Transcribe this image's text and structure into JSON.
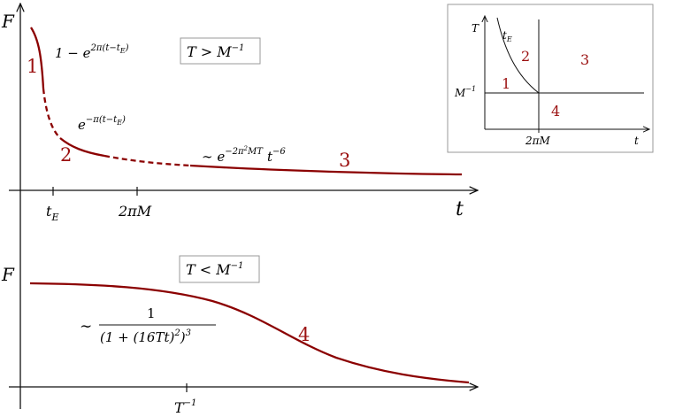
{
  "colors": {
    "curve": "#8b0000",
    "region_label": "#9b1010",
    "axis": "#111111",
    "box_border": "#999999"
  },
  "top_panel": {
    "y_axis_label": "F",
    "x_axis_label": "t",
    "condition": "T > M",
    "condition_sup": "−1",
    "tick_tE_base": "t",
    "tick_tE_sub": "E",
    "tick_2piM": "2πM",
    "region_1": "1",
    "region_2": "2",
    "region_3": "3",
    "formula_1_prefix": "1 − e",
    "formula_1_exp": "2π(t−t",
    "formula_1_exp_sub": "E",
    "formula_1_exp_close": ")",
    "formula_2_base": "e",
    "formula_2_exp": "−π(t−t",
    "formula_2_exp_sub": "E",
    "formula_2_exp_close": ")",
    "formula_3_prefix": "∼ e",
    "formula_3_exp": "−2π",
    "formula_3_exp_sup": "2",
    "formula_3_exp_rest": "MT",
    "formula_3_t": "t",
    "formula_3_t_exp": "−6"
  },
  "bottom_panel": {
    "y_axis_label": "F",
    "condition": "T < M",
    "condition_sup": "−1",
    "tick_Tinv_base": "T",
    "tick_Tinv_sup": "−1",
    "region_4": "4",
    "formula_sim": "∼",
    "formula_num": "1",
    "formula_den": "(1 + (16Tt)",
    "formula_den_sup1": "2",
    "formula_den_close": ")",
    "formula_den_sup2": "3"
  },
  "inset": {
    "y_axis_label": "T",
    "x_axis_label": "t",
    "curve_label_base": "t",
    "curve_label_sub": "E",
    "y_tick_base": "M",
    "y_tick_sup": "−1",
    "x_tick": "2πM",
    "region_1": "1",
    "region_2": "2",
    "region_3": "3",
    "region_4": "4"
  }
}
